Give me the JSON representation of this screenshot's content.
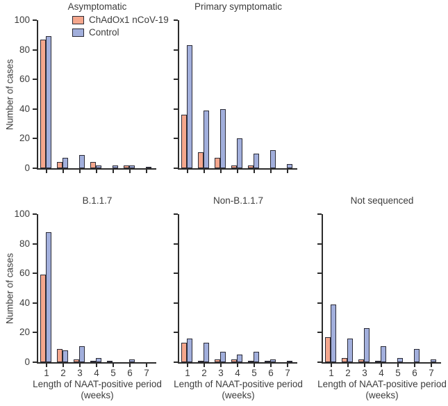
{
  "figure": {
    "series_colors": {
      "chadox": "#F5A78D",
      "control": "#A2AFDC"
    },
    "outline_color": "#2A2A35",
    "axis_color": "#2B2B2B",
    "text_color": "#3C3C3C",
    "legend_position": "top-left-panel",
    "legend": [
      {
        "key": "chadox",
        "label": "ChAdOx1 nCoV-19"
      },
      {
        "key": "control",
        "label": "Control"
      }
    ],
    "y_axis": {
      "label": "Number of cases",
      "ticks": [
        0,
        20,
        40,
        60,
        80,
        100
      ]
    },
    "x_axis": {
      "label_line1": "Length of NAAT-positive period",
      "label_line2": "(weeks)",
      "ticks": [
        "1",
        "2",
        "3",
        "4",
        "5",
        "6",
        "7"
      ]
    }
  },
  "chart_data": [
    {
      "type": "bar",
      "title": "Asymptomatic",
      "categories": [
        1,
        2,
        3,
        4,
        5,
        6,
        7
      ],
      "xlabel": "Length of NAAT-positive period (weeks)",
      "ylabel": "Number of cases",
      "ylim": [
        0,
        100
      ],
      "series": [
        {
          "name": "ChAdOx1 nCoV-19",
          "values": [
            87,
            4,
            0,
            4,
            0,
            2,
            0
          ]
        },
        {
          "name": "Control",
          "values": [
            89,
            7,
            9,
            2,
            2,
            2,
            1
          ]
        }
      ]
    },
    {
      "type": "bar",
      "title": "Primary symptomatic",
      "categories": [
        1,
        2,
        3,
        4,
        5,
        6,
        7
      ],
      "xlabel": "Length of NAAT-positive period (weeks)",
      "ylabel": "Number of cases",
      "ylim": [
        0,
        100
      ],
      "series": [
        {
          "name": "ChAdOx1 nCoV-19",
          "values": [
            36,
            11,
            7,
            2,
            2,
            0,
            0
          ]
        },
        {
          "name": "Control",
          "values": [
            83,
            39,
            40,
            20,
            10,
            12,
            3
          ]
        }
      ]
    },
    {
      "type": "bar",
      "title": "B.1.1.7",
      "categories": [
        1,
        2,
        3,
        4,
        5,
        6,
        7
      ],
      "xlabel": "Length of NAAT-positive period (weeks)",
      "ylabel": "Number of cases",
      "ylim": [
        0,
        100
      ],
      "series": [
        {
          "name": "ChAdOx1 nCoV-19",
          "values": [
            59,
            9,
            2,
            1,
            1,
            0,
            0
          ]
        },
        {
          "name": "Control",
          "values": [
            88,
            8,
            11,
            3,
            0,
            2,
            0
          ]
        }
      ]
    },
    {
      "type": "bar",
      "title": "Non-B.1.1.7",
      "categories": [
        1,
        2,
        3,
        4,
        5,
        6,
        7
      ],
      "xlabel": "Length of NAAT-positive period (weeks)",
      "ylabel": "Number of cases",
      "ylim": [
        0,
        100
      ],
      "series": [
        {
          "name": "ChAdOx1 nCoV-19",
          "values": [
            13,
            1,
            2,
            2,
            1,
            1,
            0
          ]
        },
        {
          "name": "Control",
          "values": [
            16,
            13,
            7,
            5,
            7,
            2,
            1
          ]
        }
      ]
    },
    {
      "type": "bar",
      "title": "Not sequenced",
      "categories": [
        1,
        2,
        3,
        4,
        5,
        6,
        7
      ],
      "xlabel": "Length of NAAT-positive period (weeks)",
      "ylabel": "Number of cases",
      "ylim": [
        0,
        100
      ],
      "series": [
        {
          "name": "ChAdOx1 nCoV-19",
          "values": [
            17,
            3,
            2,
            1,
            0,
            0,
            0
          ]
        },
        {
          "name": "Control",
          "values": [
            39,
            16,
            23,
            11,
            3,
            9,
            2
          ]
        }
      ]
    }
  ]
}
